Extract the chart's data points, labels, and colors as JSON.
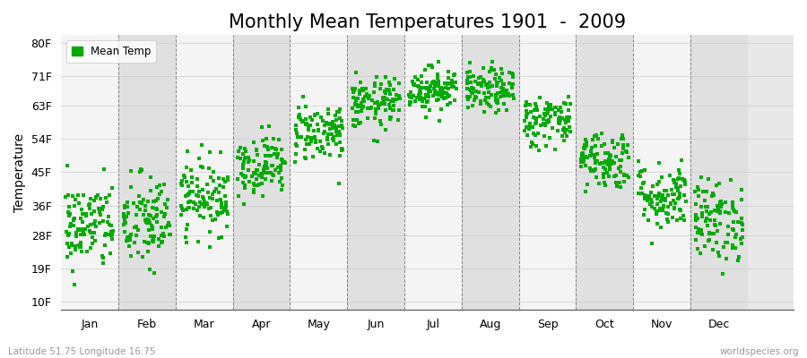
{
  "title": "Monthly Mean Temperatures 1901  -  2009",
  "ylabel": "Temperature",
  "xlabel_months": [
    "Jan",
    "Feb",
    "Mar",
    "Apr",
    "May",
    "Jun",
    "Jul",
    "Aug",
    "Sep",
    "Oct",
    "Nov",
    "Dec"
  ],
  "yticks": [
    10,
    19,
    28,
    36,
    45,
    54,
    63,
    71,
    80
  ],
  "ytick_labels": [
    "10F",
    "19F",
    "28F",
    "36F",
    "45F",
    "54F",
    "63F",
    "71F",
    "80F"
  ],
  "ylim": [
    8,
    82
  ],
  "xlim": [
    -0.5,
    12.3
  ],
  "dot_color": "#00aa00",
  "dot_size": 5,
  "background_color": "#ffffff",
  "plot_bg_color": "#e8e8e8",
  "band_light_color": "#f4f4f4",
  "band_dark_color": "#e0e0e0",
  "grid_color": "#666666",
  "title_fontsize": 15,
  "axis_fontsize": 10,
  "tick_fontsize": 9,
  "legend_label": "Mean Temp",
  "footer_left": "Latitude 51.75 Longitude 16.75",
  "footer_right": "worldspecies.org",
  "n_years": 109,
  "monthly_means_f": [
    30.5,
    31.5,
    38.5,
    47.0,
    56.0,
    63.5,
    67.5,
    67.0,
    59.0,
    48.5,
    38.5,
    32.0
  ],
  "monthly_stds_f": [
    6.0,
    6.5,
    5.0,
    4.0,
    4.0,
    3.5,
    3.0,
    3.0,
    3.5,
    4.0,
    4.5,
    5.5
  ],
  "seed": 42
}
